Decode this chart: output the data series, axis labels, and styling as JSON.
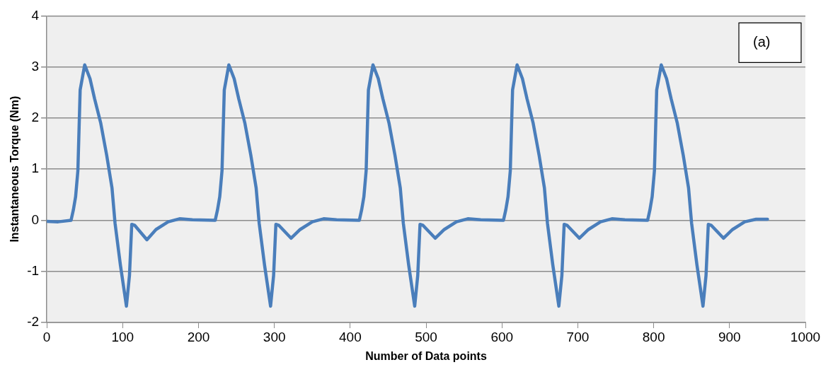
{
  "chart_data": {
    "type": "line",
    "xlabel": "Number of Data points",
    "ylabel": "Instantaneous Torque (Nm)",
    "annotations": [
      "(a)"
    ],
    "xlim": [
      0,
      1000
    ],
    "xticks": [
      0,
      100,
      200,
      300,
      400,
      500,
      600,
      700,
      800,
      900,
      1000
    ],
    "ylim": [
      -2,
      4
    ],
    "yticks": [
      -2,
      -1,
      0,
      1,
      2,
      3,
      4
    ],
    "grid": "y",
    "legend": false,
    "marker": "none",
    "line_style": "solid",
    "series": [
      {
        "color": "#4a7ebb",
        "x": [
          0,
          15,
          32,
          35,
          38,
          41,
          44,
          50,
          57,
          63,
          71,
          79,
          86,
          90,
          97,
          105,
          109,
          112,
          116,
          132,
          144,
          160,
          175,
          192,
          222,
          225,
          228,
          231,
          234,
          240,
          247,
          253,
          261,
          269,
          276,
          280,
          287,
          295,
          299,
          302,
          306,
          322,
          334,
          350,
          365,
          382,
          412,
          415,
          418,
          421,
          424,
          430,
          437,
          443,
          451,
          459,
          466,
          470,
          477,
          485,
          489,
          492,
          496,
          512,
          524,
          540,
          555,
          572,
          602,
          605,
          608,
          611,
          614,
          620,
          627,
          633,
          641,
          649,
          656,
          660,
          667,
          675,
          679,
          682,
          686,
          702,
          714,
          730,
          745,
          762,
          792,
          795,
          798,
          801,
          804,
          810,
          817,
          823,
          831,
          839,
          846,
          850,
          857,
          865,
          869,
          872,
          876,
          892,
          904,
          920,
          935,
          950
        ],
        "values": [
          -0.02,
          -0.03,
          0,
          0.2,
          0.46,
          0.97,
          2.55,
          3.04,
          2.77,
          2.38,
          1.91,
          1.27,
          0.63,
          -0.06,
          -0.87,
          -1.68,
          -1.08,
          -0.08,
          -0.1,
          -0.38,
          -0.18,
          -0.03,
          0.03,
          0.01,
          0,
          0.2,
          0.46,
          0.97,
          2.55,
          3.04,
          2.77,
          2.38,
          1.91,
          1.27,
          0.63,
          -0.06,
          -0.87,
          -1.68,
          -1.08,
          -0.08,
          -0.1,
          -0.35,
          -0.18,
          -0.03,
          0.03,
          0.01,
          0,
          0.2,
          0.46,
          0.97,
          2.55,
          3.04,
          2.77,
          2.38,
          1.91,
          1.27,
          0.63,
          -0.06,
          -0.87,
          -1.68,
          -1.08,
          -0.08,
          -0.1,
          -0.35,
          -0.18,
          -0.03,
          0.03,
          0.01,
          0,
          0.2,
          0.46,
          0.97,
          2.55,
          3.04,
          2.77,
          2.38,
          1.91,
          1.27,
          0.63,
          -0.06,
          -0.87,
          -1.68,
          -1.08,
          -0.08,
          -0.1,
          -0.35,
          -0.18,
          -0.03,
          0.03,
          0.01,
          0,
          0.2,
          0.46,
          0.97,
          2.55,
          3.04,
          2.77,
          2.38,
          1.91,
          1.27,
          0.63,
          -0.06,
          -0.87,
          -1.68,
          -1.08,
          -0.08,
          -0.1,
          -0.35,
          -0.18,
          -0.03,
          0.02,
          0.02
        ]
      }
    ]
  }
}
